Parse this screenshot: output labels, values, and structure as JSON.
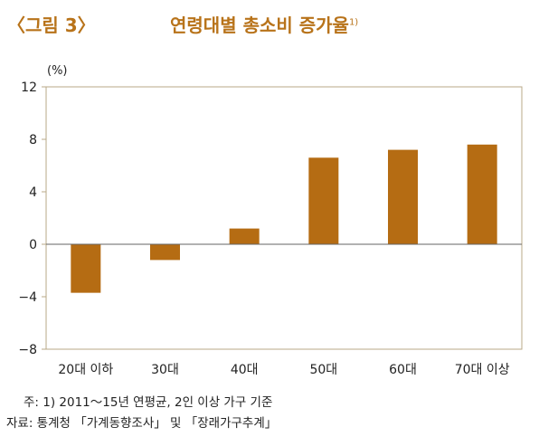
{
  "figure_label": "〈그림 3〉",
  "title": "연령대별 총소비 증가율",
  "title_sup": "1)",
  "notes": {
    "footnote": "주: 1) 2011～15년 연평균, 2인 이상 가구 기준",
    "source": "자료: 통계청 「가계동향조사」 및 「장래가구추계」"
  },
  "colors": {
    "bar": "#b56c13",
    "frame": "#b9a887",
    "zero_line": "#666666",
    "accent": "#b8731a"
  },
  "chart_data": {
    "type": "bar",
    "unit_label": "(%)",
    "categories": [
      "20대 이하",
      "30대",
      "40대",
      "50대",
      "60대",
      "70대 이상"
    ],
    "values": [
      -3.7,
      -1.2,
      1.2,
      6.6,
      7.2,
      7.6
    ],
    "ylim": [
      -8,
      12
    ],
    "yticks": [
      -8,
      -4,
      0,
      4,
      8,
      12
    ],
    "ytick_labels": [
      "−8",
      "−4",
      "0",
      "4",
      "8",
      "12"
    ],
    "grid": false,
    "legend": "none"
  }
}
